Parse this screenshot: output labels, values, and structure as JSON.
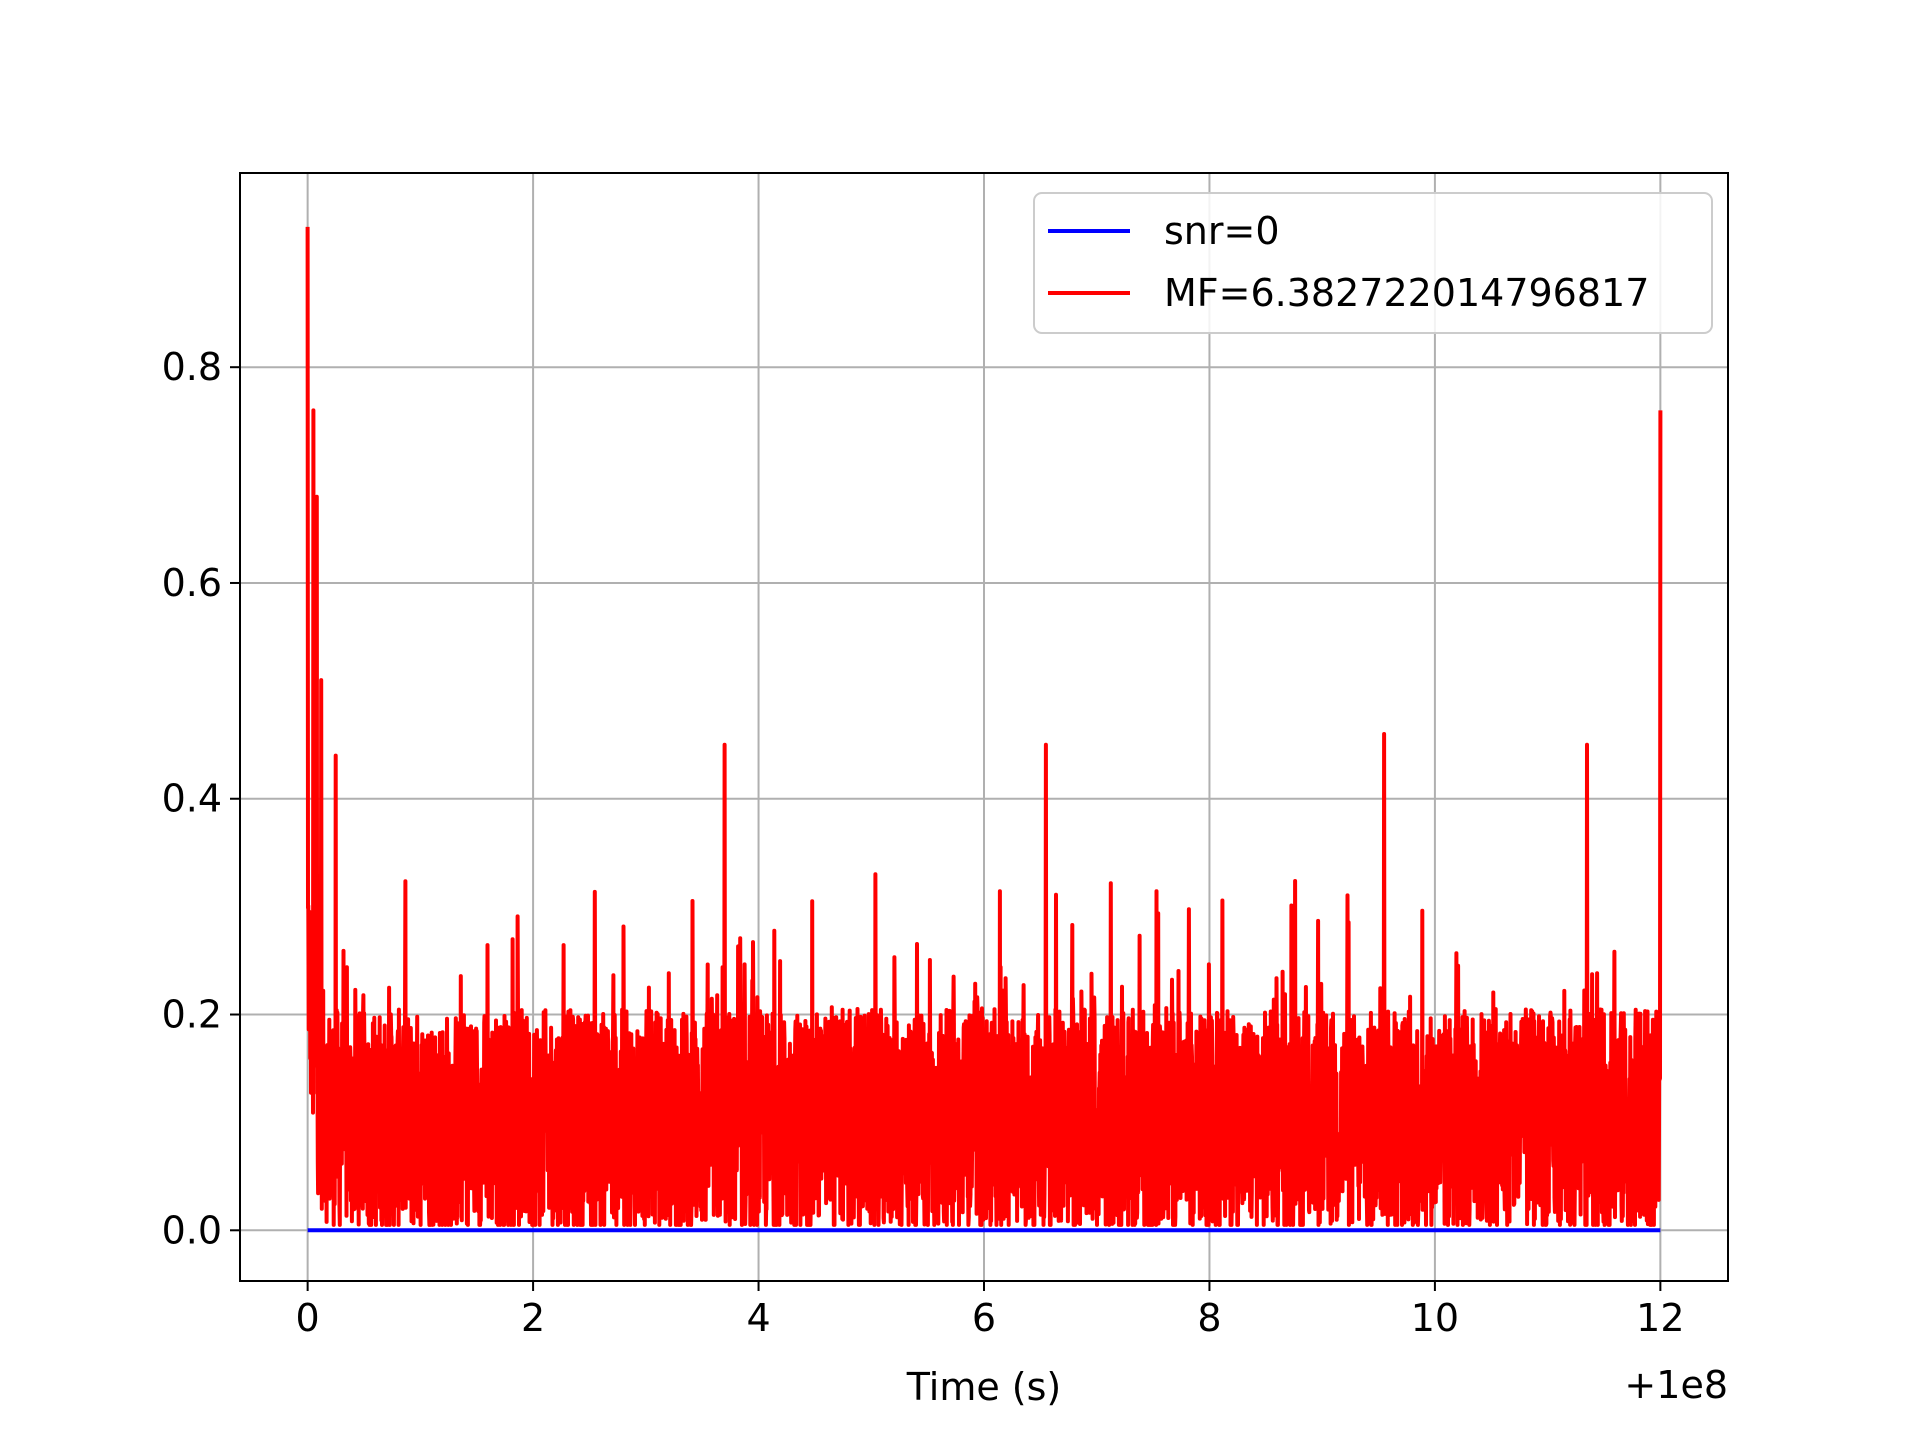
{
  "chart_data": {
    "type": "line",
    "title": "",
    "xlabel": "Time (s)",
    "ylabel": "",
    "x_offset_label": "+1e8",
    "xlim": [
      -0.6,
      12.6
    ],
    "ylim": [
      -0.047,
      0.98
    ],
    "x_ticks": [
      0,
      2,
      4,
      6,
      8,
      10,
      12
    ],
    "x_tick_labels": [
      "0",
      "2",
      "4",
      "6",
      "8",
      "10",
      "12"
    ],
    "y_ticks": [
      0.0,
      0.2,
      0.4,
      0.6,
      0.8
    ],
    "y_tick_labels": [
      "0.0",
      "0.2",
      "0.4",
      "0.6",
      "0.8"
    ],
    "grid": true,
    "legend_position": "top-right",
    "series": [
      {
        "name": "snr=0",
        "color": "#0000ff",
        "x": [
          0,
          12
        ],
        "y": [
          0,
          0
        ]
      },
      {
        "name": "MF=6.382722014796817",
        "color": "#ff0000",
        "x_range": [
          0,
          12
        ],
        "n_points": 4000,
        "typical_range": [
          0.0,
          0.33
        ],
        "peaks": [
          {
            "x": 0.0,
            "y": 0.93
          },
          {
            "x": 0.05,
            "y": 0.76
          },
          {
            "x": 0.08,
            "y": 0.68
          },
          {
            "x": 0.12,
            "y": 0.51
          },
          {
            "x": 0.25,
            "y": 0.44
          },
          {
            "x": 3.7,
            "y": 0.45
          },
          {
            "x": 6.55,
            "y": 0.45
          },
          {
            "x": 9.55,
            "y": 0.46
          },
          {
            "x": 11.35,
            "y": 0.45
          },
          {
            "x": 12.0,
            "y": 0.76
          }
        ]
      }
    ]
  }
}
